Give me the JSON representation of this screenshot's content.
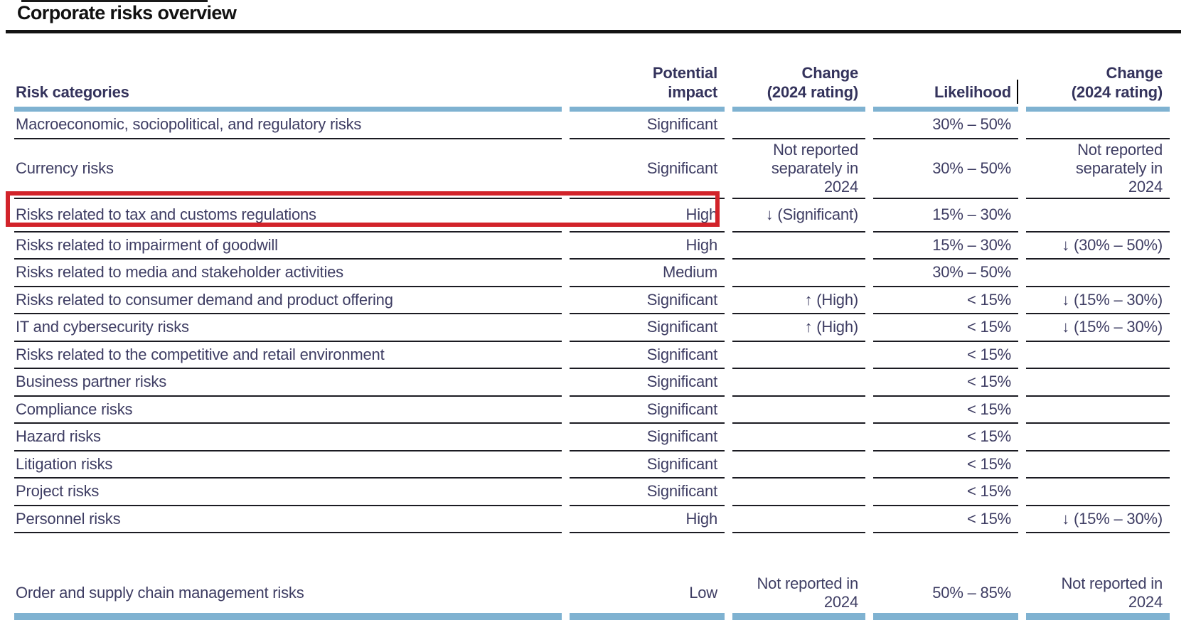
{
  "title": "Corporate risks overview",
  "table": {
    "columns": [
      {
        "label": "Risk categories"
      },
      {
        "label": "Potential\nimpact"
      },
      {
        "label": "Change\n(2024 rating)"
      },
      {
        "label": "Likelihood"
      },
      {
        "label": "Change\n(2024 rating)"
      }
    ],
    "rows": [
      {
        "category": "Macroeconomic, sociopolitical, and regulatory risks",
        "impact": "Significant",
        "impact_change": "",
        "likelihood": "30% – 50%",
        "likelihood_change": ""
      },
      {
        "category": "Currency risks",
        "impact": "Significant",
        "impact_change": "Not reported\nseparately in\n2024",
        "likelihood": "30% – 50%",
        "likelihood_change": "Not reported\nseparately in\n2024"
      },
      {
        "category": "Risks related to tax and customs regulations",
        "impact": "High",
        "impact_change": "↓ (Significant)",
        "likelihood": "15% – 30%",
        "likelihood_change": "",
        "highlighted": true
      },
      {
        "category": "Risks related to impairment of goodwill",
        "impact": "High",
        "impact_change": "",
        "likelihood": "15% – 30%",
        "likelihood_change": "↓ (30% – 50%)"
      },
      {
        "category": "Risks related to media and stakeholder activities",
        "impact": "Medium",
        "impact_change": "",
        "likelihood": "30% – 50%",
        "likelihood_change": ""
      },
      {
        "category": "Risks related to consumer demand and product offering",
        "impact": "Significant",
        "impact_change": "↑ (High)",
        "likelihood": "< 15%",
        "likelihood_change": "↓ (15% – 30%)"
      },
      {
        "category": "IT and cybersecurity risks",
        "impact": "Significant",
        "impact_change": "↑ (High)",
        "likelihood": "< 15%",
        "likelihood_change": "↓ (15% – 30%)"
      },
      {
        "category": "Risks related to the competitive and retail environment",
        "impact": "Significant",
        "impact_change": "",
        "likelihood": "< 15%",
        "likelihood_change": ""
      },
      {
        "category": "Business partner risks",
        "impact": "Significant",
        "impact_change": "",
        "likelihood": "< 15%",
        "likelihood_change": ""
      },
      {
        "category": "Compliance risks",
        "impact": "Significant",
        "impact_change": "",
        "likelihood": "< 15%",
        "likelihood_change": ""
      },
      {
        "category": "Hazard risks",
        "impact": "Significant",
        "impact_change": "",
        "likelihood": "< 15%",
        "likelihood_change": ""
      },
      {
        "category": "Litigation risks",
        "impact": "Significant",
        "impact_change": "",
        "likelihood": "< 15%",
        "likelihood_change": ""
      },
      {
        "category": "Project risks",
        "impact": "Significant",
        "impact_change": "",
        "likelihood": "< 15%",
        "likelihood_change": ""
      },
      {
        "category": "Personnel risks",
        "impact": "High",
        "impact_change": "",
        "likelihood": "< 15%",
        "likelihood_change": "↓ (15% – 30%)"
      },
      {
        "category": "Order and supply chain management risks",
        "impact": "Low",
        "impact_change": "Not reported in\n2024",
        "likelihood": "50% – 85%",
        "likelihood_change": "Not reported in\n2024"
      }
    ]
  },
  "annotation": {
    "highlighted_row": "Risks related to tax and customs regulations",
    "highlight_color": "#d2232a"
  },
  "colors": {
    "accent_blue": "#7fb2d1",
    "highlight_red": "#d2232a",
    "body_text": "#3e3d63",
    "header_text": "#34335c",
    "rule_black": "#141414"
  }
}
